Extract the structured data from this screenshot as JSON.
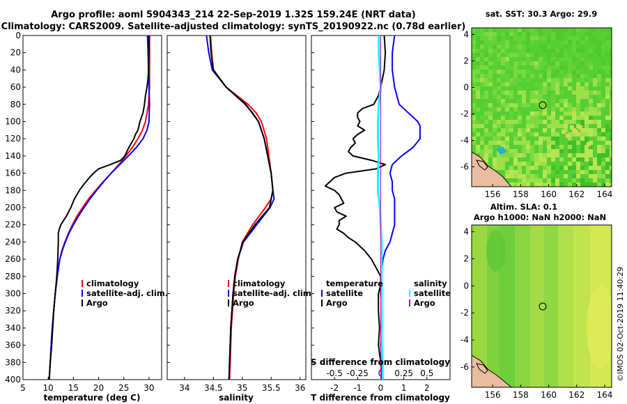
{
  "title_line1": "Argo profile: aoml 5904343_214 22-Sep-2019 1.32S 159.24E (NRT data)",
  "title_line2": "Climatology: CARS2009. Satellite-adjusted climatology: synTS_20190922.nc (0.78d earlier)",
  "credit": "©IMOS 02-Oct-2019 11:40:29",
  "colors": {
    "clim": "#ff0000",
    "sat": "#0000ff",
    "argo": "#000000",
    "sat_s": "#00ffff",
    "argo_s": "#c000c0"
  },
  "chart_data": [
    {
      "type": "line",
      "id": "temperature",
      "xlabel": "temperature (deg C)",
      "ylabel": "",
      "xlim": [
        5,
        32.5
      ],
      "ylim": [
        400,
        0
      ],
      "xticks": [
        "5",
        "10",
        "15",
        "20",
        "25",
        "30"
      ],
      "yticks": [
        "0",
        "20",
        "40",
        "60",
        "80",
        "100",
        "120",
        "140",
        "160",
        "180",
        "200",
        "220",
        "240",
        "260",
        "280",
        "300",
        "320",
        "340",
        "360",
        "380",
        "400"
      ],
      "legend": [
        "climatology",
        "satellite-adj. clim.",
        "Argo"
      ],
      "series": [
        {
          "name": "climatology",
          "depth": [
            0,
            20,
            40,
            60,
            80,
            100,
            110,
            120,
            130,
            140,
            150,
            160,
            170,
            180,
            190,
            200,
            210,
            220,
            230,
            240,
            250,
            260,
            280,
            300,
            320,
            340,
            360,
            380,
            400
          ],
          "values": [
            30.1,
            30.1,
            30.1,
            30.1,
            29.9,
            29.3,
            28.7,
            27.8,
            26.7,
            25.4,
            24.0,
            22.5,
            20.9,
            19.4,
            18.0,
            16.8,
            15.7,
            14.8,
            14.0,
            13.3,
            12.7,
            12.3,
            11.8,
            11.4,
            11.1,
            10.8,
            10.6,
            10.4,
            10.2
          ]
        },
        {
          "name": "satellite-adj. clim.",
          "depth": [
            0,
            20,
            40,
            60,
            80,
            100,
            110,
            120,
            130,
            140,
            150,
            160,
            170,
            180,
            190,
            200,
            210,
            220,
            230,
            240,
            250,
            260,
            280,
            300,
            320,
            340,
            360,
            380,
            400
          ],
          "values": [
            29.7,
            29.8,
            29.9,
            30.0,
            30.1,
            30.0,
            29.6,
            28.8,
            27.5,
            25.9,
            24.2,
            22.5,
            21.0,
            19.6,
            18.3,
            17.1,
            16.0,
            15.0,
            14.1,
            13.4,
            12.8,
            12.3,
            11.8,
            11.4,
            11.1,
            10.8,
            10.6,
            10.4,
            10.2
          ]
        },
        {
          "name": "Argo",
          "depth": [
            0,
            20,
            40,
            50,
            60,
            70,
            80,
            90,
            100,
            110,
            115,
            120,
            125,
            130,
            135,
            140,
            145,
            150,
            155,
            160,
            165,
            170,
            175,
            180,
            190,
            200,
            210,
            220,
            225,
            230,
            240,
            260,
            280,
            300,
            320,
            340,
            360,
            380,
            400
          ],
          "values": [
            30.0,
            30.0,
            29.9,
            29.8,
            29.6,
            29.3,
            29.1,
            28.8,
            28.2,
            27.8,
            27.3,
            27.0,
            26.5,
            26.0,
            25.6,
            25.2,
            24.4,
            22.3,
            20.0,
            19.0,
            18.2,
            17.5,
            16.8,
            16.2,
            15.2,
            14.5,
            13.6,
            12.5,
            12.2,
            12.0,
            12.0,
            11.9,
            11.7,
            11.4,
            11.1,
            10.9,
            10.7,
            10.4,
            10.2
          ]
        }
      ]
    },
    {
      "type": "line",
      "id": "salinity",
      "xlabel": "salinity",
      "ylabel": "",
      "xlim": [
        33.7,
        36.1
      ],
      "ylim": [
        400,
        0
      ],
      "xticks": [
        "34",
        "34.5",
        "35",
        "35.5",
        "36"
      ],
      "legend": [
        "climatology",
        "satellite-adj. clim.",
        "Argo"
      ],
      "series": [
        {
          "name": "climatology",
          "depth": [
            0,
            20,
            40,
            60,
            80,
            90,
            100,
            120,
            140,
            160,
            180,
            190,
            200,
            220,
            240,
            260,
            280,
            300,
            320,
            340,
            360,
            380,
            400
          ],
          "values": [
            34.45,
            34.47,
            34.5,
            34.72,
            35.1,
            35.24,
            35.33,
            35.42,
            35.46,
            35.5,
            35.53,
            35.5,
            35.4,
            35.18,
            35.0,
            34.93,
            34.88,
            34.85,
            34.83,
            34.81,
            34.8,
            34.79,
            34.78
          ]
        },
        {
          "name": "satellite-adj. clim.",
          "depth": [
            0,
            20,
            40,
            60,
            80,
            90,
            100,
            120,
            140,
            160,
            180,
            190,
            200,
            220,
            240,
            260,
            280,
            300,
            320,
            340,
            360,
            380,
            400
          ],
          "values": [
            34.38,
            34.42,
            34.48,
            34.72,
            35.05,
            35.18,
            35.28,
            35.38,
            35.44,
            35.5,
            35.53,
            35.55,
            35.48,
            35.25,
            35.02,
            34.92,
            34.87,
            34.84,
            34.82,
            34.8,
            34.79,
            34.78,
            34.77
          ]
        },
        {
          "name": "Argo",
          "depth": [
            0,
            20,
            40,
            60,
            80,
            100,
            120,
            140,
            160,
            180,
            200,
            220,
            240,
            260,
            280,
            300,
            320,
            340,
            360,
            380,
            400
          ],
          "values": [
            34.44,
            34.46,
            34.5,
            34.72,
            35.06,
            35.28,
            35.38,
            35.44,
            35.5,
            35.53,
            35.47,
            35.22,
            35.01,
            34.92,
            34.87,
            34.84,
            34.82,
            34.8,
            34.79,
            34.78,
            34.77
          ]
        }
      ]
    },
    {
      "type": "line",
      "id": "difference",
      "xlabel": "T difference from climatology",
      "xlabel_top": "S difference from climatology",
      "xlim": [
        -3,
        3
      ],
      "ylim": [
        400,
        0
      ],
      "xticks": [
        "-2",
        "-1",
        "0",
        "1",
        "2"
      ],
      "xticks_top": [
        "-0.5",
        "-0.25",
        "0",
        "0.25",
        "0.5"
      ],
      "legend_temperature_title": "temperature",
      "legend_salinity_title": "salinity",
      "legend": [
        "satellite",
        "Argo",
        "satellite",
        "Argo"
      ],
      "series": [
        {
          "name": "temperature satellite",
          "depth": [
            0,
            20,
            40,
            60,
            80,
            90,
            100,
            105,
            110,
            120,
            130,
            140,
            150,
            160,
            170,
            180,
            190,
            200,
            210,
            220,
            230,
            240,
            250,
            260,
            270,
            280,
            300,
            320,
            340,
            360,
            380,
            400
          ],
          "values": [
            0.6,
            0.5,
            0.5,
            0.6,
            0.8,
            1.2,
            1.6,
            1.7,
            1.7,
            1.7,
            1.4,
            0.9,
            0.5,
            0.4,
            0.5,
            0.5,
            0.6,
            0.6,
            0.6,
            0.6,
            0.5,
            0.4,
            0.2,
            0.1,
            0.05,
            0.0,
            0.0,
            0.05,
            0.05,
            0.0,
            0.05,
            0.1
          ]
        },
        {
          "name": "temperature Argo",
          "depth": [
            0,
            20,
            40,
            60,
            70,
            80,
            85,
            90,
            95,
            100,
            105,
            110,
            115,
            120,
            125,
            130,
            135,
            140,
            145,
            150,
            155,
            160,
            165,
            170,
            175,
            180,
            185,
            190,
            195,
            200,
            205,
            210,
            215,
            220,
            225,
            230,
            235,
            240,
            250,
            260,
            270,
            280,
            290,
            300,
            320,
            340,
            360,
            380,
            400
          ],
          "values": [
            0.15,
            0.2,
            0.15,
            0.0,
            -0.1,
            -0.3,
            -0.8,
            -1.0,
            -1.0,
            -0.9,
            -1.0,
            -0.7,
            -1.0,
            -1.2,
            -1.1,
            -1.3,
            -1.4,
            -1.2,
            -0.4,
            0.2,
            -0.2,
            -1.5,
            -2.0,
            -2.2,
            -2.4,
            -2.0,
            -1.8,
            -1.7,
            -1.6,
            -2.0,
            -1.9,
            -1.5,
            -1.8,
            -1.8,
            -1.9,
            -1.6,
            -1.4,
            -1.1,
            -0.7,
            -0.4,
            -0.2,
            0.0,
            0.0,
            -0.1,
            -0.1,
            -0.05,
            -0.1,
            0.0,
            0.05
          ]
        },
        {
          "name": "salinity satellite",
          "depth": [
            0,
            20,
            40,
            60,
            80,
            100,
            120,
            140,
            160,
            180,
            200,
            220,
            240,
            260,
            280,
            300,
            320,
            340,
            360,
            380,
            400
          ],
          "values": [
            -0.02,
            -0.02,
            -0.01,
            0.0,
            -0.02,
            -0.03,
            -0.03,
            -0.02,
            -0.03,
            -0.03,
            -0.01,
            0.0,
            0.01,
            0.01,
            0.01,
            0.01,
            0.01,
            0.01,
            0.01,
            0.02,
            0.02
          ]
        },
        {
          "name": "salinity Argo",
          "depth": [
            0,
            20,
            40,
            60,
            80,
            100,
            120,
            140,
            160,
            180,
            200,
            220,
            240,
            260,
            280,
            300,
            320,
            340,
            360,
            380,
            400
          ],
          "values": [
            0.0,
            0.0,
            0.0,
            0.0,
            0.0,
            0.0,
            0.0,
            0.0,
            0.0,
            0.0,
            0.0,
            0.0,
            0.0,
            0.0,
            0.0,
            0.0,
            0.0,
            0.0,
            0.0,
            0.0,
            0.0
          ]
        }
      ]
    },
    {
      "type": "heatmap",
      "id": "sst_map",
      "title": "sat. SST: 30.3 Argo: 29.9",
      "xlim": [
        154.5,
        164.5
      ],
      "ylim": [
        -7.5,
        4.5
      ],
      "xticks": [
        "156",
        "158",
        "160",
        "162",
        "164"
      ],
      "yticks": [
        "4",
        "2",
        "0",
        "-2",
        "-4",
        "-6"
      ],
      "marker": {
        "lon": 159.24,
        "lat": -1.32
      }
    },
    {
      "type": "heatmap",
      "id": "sla_map",
      "title_line1": "Altim. SLA: 0.1",
      "title_line2": "Argo h1000: NaN h2000: NaN",
      "xlim": [
        154.5,
        164.5
      ],
      "ylim": [
        -7.5,
        4.5
      ],
      "xticks": [
        "156",
        "158",
        "160",
        "162",
        "164"
      ],
      "yticks": [
        "4",
        "2",
        "0",
        "-2",
        "-4",
        "-6"
      ],
      "marker": {
        "lon": 159.24,
        "lat": -1.32
      }
    }
  ]
}
